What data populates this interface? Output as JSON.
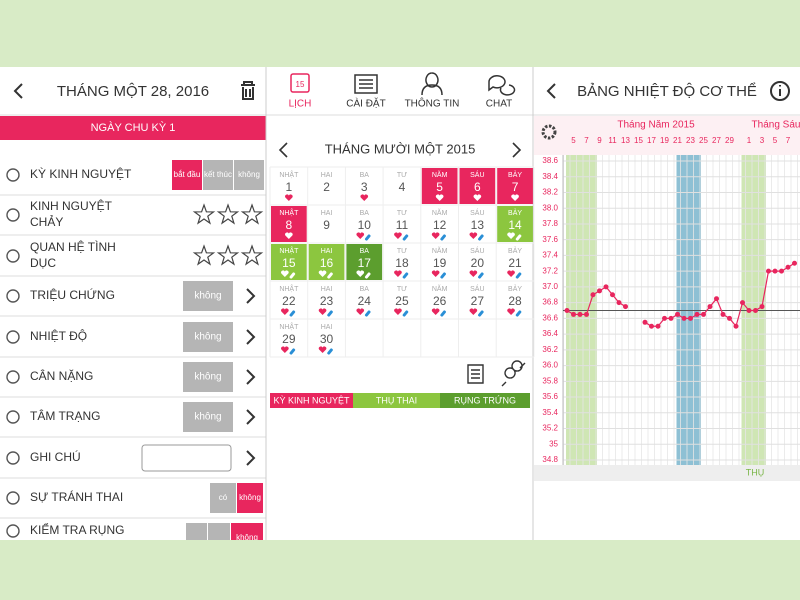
{
  "left_panel": {
    "header": "THÁNG MỘT 28, 2016",
    "cycle_bar": "NGÀY CHU KỲ 1",
    "rows": [
      {
        "label": [
          "KỲ KINH NGUYỆT"
        ],
        "control": "segmented",
        "buttons": [
          "bắt đầu",
          "kết thúc",
          "không"
        ],
        "active": 0
      },
      {
        "label": [
          "KINH NGUYỆT",
          "CHẢY"
        ],
        "control": "stars"
      },
      {
        "label": [
          "QUAN HỆ TÌNH",
          "DỤC"
        ],
        "control": "stars"
      },
      {
        "label": [
          "TRIỆU CHỨNG"
        ],
        "control": "button",
        "buttons": [
          "không"
        ]
      },
      {
        "label": [
          "NHIỆT ĐỘ"
        ],
        "control": "button",
        "buttons": [
          "không"
        ]
      },
      {
        "label": [
          "CÂN NẶNG"
        ],
        "control": "button",
        "buttons": [
          "không"
        ]
      },
      {
        "label": [
          "TÂM TRẠNG"
        ],
        "control": "button",
        "buttons": [
          "không"
        ]
      },
      {
        "label": [
          "GHI CHÚ"
        ],
        "control": "input"
      },
      {
        "label": [
          "SỰ TRÁNH THAI"
        ],
        "control": "segmented",
        "buttons": [
          "có",
          "không"
        ],
        "active": 1
      },
      {
        "label": [
          "KIỂM TRA RỤNG"
        ],
        "control": "segmented-cut",
        "buttons": [
          "không"
        ],
        "active": 0
      }
    ]
  },
  "tabs": {
    "icon_day": "15",
    "items": [
      "LỊCH",
      "CÀI ĐẶT",
      "THÔNG TIN",
      "CHAT"
    ],
    "active": 0
  },
  "calendar": {
    "title": "THÁNG MƯỜI MỘT 2015",
    "weekdays": [
      "NHẬT",
      "HAI",
      "BA",
      "TƯ",
      "NĂM",
      "SÁU",
      "BẢY"
    ],
    "days": [
      {
        "day": 1
      },
      {
        "day": 2
      },
      {
        "day": 3
      },
      {
        "day": 4
      },
      {
        "day": 5,
        "style": "period"
      },
      {
        "day": 6,
        "style": "period"
      },
      {
        "day": 7,
        "style": "period"
      },
      {
        "day": 8,
        "style": "period"
      },
      {
        "day": 9
      },
      {
        "day": 10
      },
      {
        "day": 11
      },
      {
        "day": 12
      },
      {
        "day": 13
      },
      {
        "day": 14,
        "style": "fertile"
      },
      {
        "day": 15,
        "style": "fertile"
      },
      {
        "day": 16,
        "style": "fertile"
      },
      {
        "day": 17,
        "style": "ovulation"
      },
      {
        "day": 18
      },
      {
        "day": 19
      },
      {
        "day": 20
      },
      {
        "day": 21
      },
      {
        "day": 22
      },
      {
        "day": 23
      },
      {
        "day": 24
      },
      {
        "day": 25
      },
      {
        "day": 26
      },
      {
        "day": 27
      },
      {
        "day": 28
      },
      {
        "day": 29
      },
      {
        "day": 30
      }
    ],
    "legend": [
      {
        "label": "KỲ KINH NGUYỆT",
        "style": "period"
      },
      {
        "label": "THỤ THAI",
        "style": "fertile"
      },
      {
        "label": "RỤNG TRỨNG",
        "style": "ovulation"
      }
    ],
    "colors": {
      "period": "#e8265e",
      "fertile": "#8cc63f",
      "ovulation": "#5c9e2e"
    }
  },
  "temperature_chart": {
    "type": "line",
    "title": "BẢNG NHIỆT ĐỘ CƠ THỂ",
    "months": [
      "Tháng Năm 2015",
      "Tháng Sáu"
    ],
    "date_labels": [
      5,
      7,
      9,
      11,
      13,
      15,
      17,
      19,
      21,
      23,
      25,
      27,
      29,
      1,
      3,
      5,
      7
    ],
    "ylim": [
      34.8,
      38.6
    ],
    "yticks": [
      {
        "value": 34.8,
        "label": "34.8"
      },
      35.2,
      35.4,
      35.6,
      35.8,
      {
        "value": 36,
        "label": "36.0"
      },
      36.2,
      36.4,
      36.6,
      36.8,
      {
        "value": 37,
        "label": "37.0"
      },
      37.2,
      37.4,
      37.6,
      37.8,
      {
        "value": 38,
        "label": "38.0"
      },
      38.2,
      38.4,
      38.6,
      35.0
    ],
    "values": [
      36.7,
      36.65,
      36.65,
      36.65,
      36.9,
      36.95,
      37.0,
      36.9,
      36.8,
      36.75,
      null,
      null,
      36.55,
      36.5,
      36.5,
      36.6,
      36.6,
      36.65,
      36.6,
      36.6,
      36.65,
      36.65,
      36.75,
      36.85,
      36.65,
      36.6,
      36.5,
      36.8,
      36.7,
      36.7,
      36.75,
      37.2,
      37.2,
      37.2,
      37.25,
      37.3
    ],
    "coverline": 36.7,
    "color": "#e8265e",
    "grid": true,
    "bottom_label": "THỤ"
  }
}
